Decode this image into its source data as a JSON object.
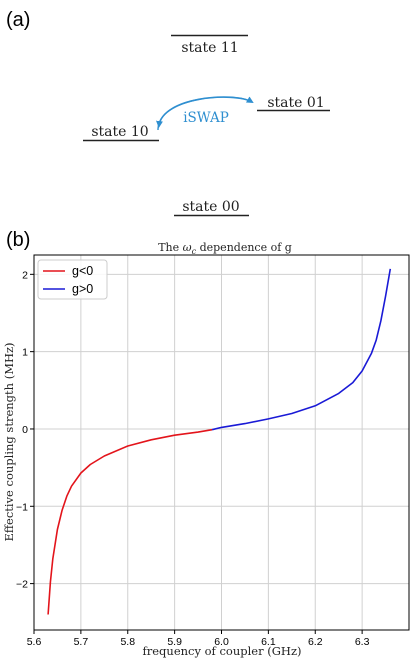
{
  "panel_a": {
    "label": "(a)",
    "states": [
      {
        "id": "s11",
        "label": "state 11"
      },
      {
        "id": "s01",
        "label": "state 01"
      },
      {
        "id": "s10",
        "label": "state 10"
      },
      {
        "id": "s00",
        "label": "state 00"
      }
    ],
    "transition": {
      "label": "iSWAP",
      "color": "#2f8fd0"
    }
  },
  "panel_b": {
    "label": "(b)"
  },
  "chart_data": {
    "type": "line",
    "title_prefix": "The ",
    "title_symbol": "ω",
    "title_subscript": "c",
    "title_suffix": " dependence of g",
    "xlabel": "frequency of coupler (GHz)",
    "ylabel": "Effective coupling strength (MHz)",
    "xlim": [
      5.6,
      6.4
    ],
    "ylim": [
      -2.6,
      2.25
    ],
    "xticks": [
      5.6,
      5.7,
      5.8,
      5.9,
      6.0,
      6.1,
      6.2,
      6.3
    ],
    "xtick_labels": [
      "5.6",
      "5.7",
      "5.8",
      "5.9",
      "6.0",
      "6.1",
      "6.2",
      "6.3"
    ],
    "yticks": [
      -2,
      -1,
      0,
      1,
      2
    ],
    "ytick_labels": [
      "−2",
      "−1",
      "0",
      "1",
      "2"
    ],
    "grid": true,
    "legend_position": "top-left",
    "series": [
      {
        "name": "g<0",
        "color": "#e3141b",
        "x": [
          5.63,
          5.635,
          5.64,
          5.65,
          5.66,
          5.67,
          5.68,
          5.7,
          5.72,
          5.75,
          5.8,
          5.85,
          5.9,
          5.95,
          5.98
        ],
        "y": [
          -2.4,
          -1.98,
          -1.68,
          -1.3,
          -1.05,
          -0.87,
          -0.74,
          -0.57,
          -0.46,
          -0.35,
          -0.22,
          -0.14,
          -0.08,
          -0.04,
          -0.01
        ]
      },
      {
        "name": "g>0",
        "color": "#1a1ad6",
        "x": [
          5.98,
          6.0,
          6.05,
          6.1,
          6.15,
          6.2,
          6.25,
          6.28,
          6.3,
          6.32,
          6.33,
          6.34,
          6.35,
          6.36
        ],
        "y": [
          -0.01,
          0.02,
          0.07,
          0.13,
          0.2,
          0.3,
          0.46,
          0.6,
          0.75,
          0.98,
          1.15,
          1.4,
          1.72,
          2.07
        ]
      }
    ]
  }
}
